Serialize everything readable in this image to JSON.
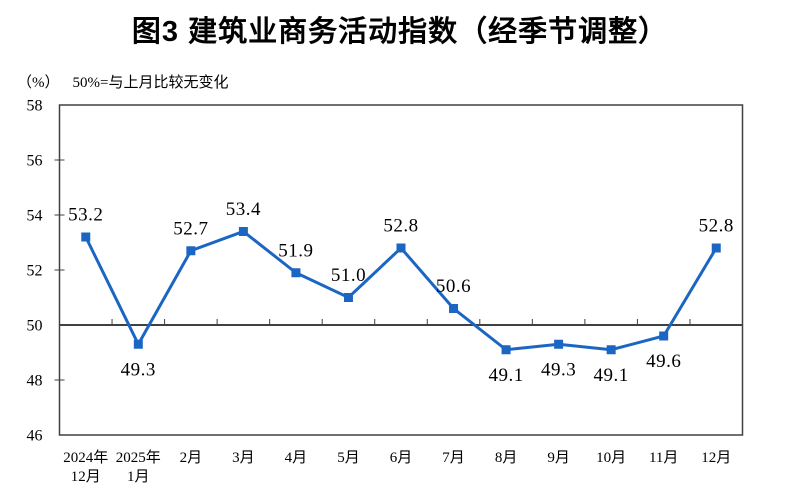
{
  "chart_data": {
    "type": "line",
    "title": "图3  建筑业商务活动指数（经季节调整）",
    "unit_label": "（%）",
    "note": "50%=与上月比较无变化",
    "categories": [
      [
        "2024年",
        "12月"
      ],
      [
        "2025年",
        "1月"
      ],
      [
        "2月"
      ],
      [
        "3月"
      ],
      [
        "4月"
      ],
      [
        "5月"
      ],
      [
        "6月"
      ],
      [
        "7月"
      ],
      [
        "8月"
      ],
      [
        "9月"
      ],
      [
        "10月"
      ],
      [
        "11月"
      ],
      [
        "12月"
      ]
    ],
    "values": [
      53.2,
      49.3,
      52.7,
      53.4,
      51.9,
      51.0,
      52.8,
      50.6,
      49.1,
      49.3,
      49.1,
      49.6,
      52.8
    ],
    "value_labels": [
      "53.2",
      "49.3",
      "52.7",
      "53.4",
      "51.9",
      "51.0",
      "52.8",
      "50.6",
      "49.1",
      "49.3",
      "49.1",
      "49.6",
      "52.8"
    ],
    "ylim": [
      46,
      58
    ],
    "yticks": [
      46,
      48,
      50,
      52,
      54,
      56,
      58
    ],
    "reference_line": 50,
    "grid": false,
    "legend": "none",
    "marker": "square",
    "line_color": "#1B66C2",
    "axis_color": "#404040",
    "text_color": "#000000"
  }
}
